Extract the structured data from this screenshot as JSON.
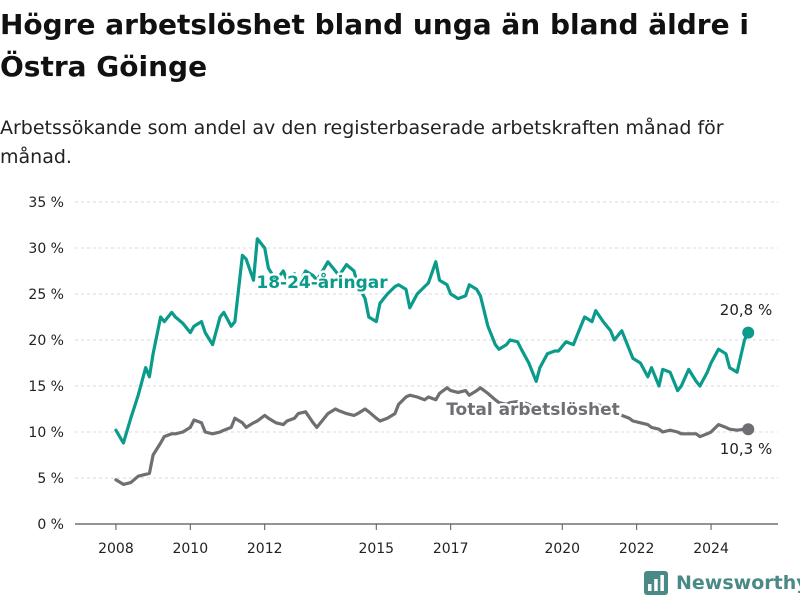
{
  "chart_data": {
    "type": "line",
    "title": "Högre arbetslöshet bland unga än bland äldre i Östra Göinge",
    "subtitle": "Arbetssökande som andel av den registerbaserade arbetskraften månad för månad.",
    "y_ticks": [
      "0 %",
      "5 %",
      "10 %",
      "15 %",
      "20 %",
      "25 %",
      "30 %",
      "35 %"
    ],
    "y_tick_values": [
      0,
      5,
      10,
      15,
      20,
      25,
      30,
      35
    ],
    "ylim": [
      0,
      35
    ],
    "x_ticks": [
      "2008",
      "2010",
      "2012",
      "2015",
      "2017",
      "2020",
      "2022",
      "2024"
    ],
    "x_tick_values": [
      2008,
      2010,
      2012,
      2015,
      2017,
      2020,
      2022,
      2024
    ],
    "xlim": [
      2006.9,
      2025.8
    ],
    "grid": "horizontal",
    "series": [
      {
        "name": "18-24-åringar",
        "color": "#0a9b8b",
        "end_label": "20,8 %",
        "x": [
          2008.0,
          2008.2,
          2008.4,
          2008.6,
          2008.8,
          2008.9,
          2009.0,
          2009.2,
          2009.3,
          2009.5,
          2009.6,
          2009.8,
          2010.0,
          2010.1,
          2010.3,
          2010.4,
          2010.6,
          2010.8,
          2010.9,
          2011.1,
          2011.2,
          2011.4,
          2011.5,
          2011.7,
          2011.8,
          2012.0,
          2012.1,
          2012.3,
          2012.5,
          2012.6,
          2012.8,
          2012.9,
          2013.1,
          2013.3,
          2013.4,
          2013.6,
          2013.7,
          2013.9,
          2014.0,
          2014.2,
          2014.4,
          2014.5,
          2014.7,
          2014.8,
          2015.0,
          2015.1,
          2015.3,
          2015.5,
          2015.6,
          2015.8,
          2015.9,
          2016.1,
          2016.3,
          2016.4,
          2016.6,
          2016.7,
          2016.9,
          2017.0,
          2017.2,
          2017.4,
          2017.5,
          2017.7,
          2017.8,
          2018.0,
          2018.2,
          2018.3,
          2018.5,
          2018.6,
          2018.8,
          2018.9,
          2019.1,
          2019.3,
          2019.4,
          2019.6,
          2019.8,
          2019.9,
          2020.1,
          2020.3,
          2020.4,
          2020.6,
          2020.8,
          2020.9,
          2021.1,
          2021.3,
          2021.4,
          2021.6,
          2021.8,
          2021.9,
          2022.1,
          2022.3,
          2022.4,
          2022.6,
          2022.7,
          2022.9,
          2023.1,
          2023.2,
          2023.4,
          2023.6,
          2023.7,
          2023.9,
          2024.0,
          2024.2,
          2024.4,
          2024.5,
          2024.7,
          2024.9,
          2025.0
        ],
        "y": [
          10.2,
          8.8,
          11.5,
          14.0,
          17.0,
          16.0,
          18.5,
          22.5,
          22.0,
          23.0,
          22.5,
          21.8,
          20.8,
          21.5,
          22.0,
          20.8,
          19.5,
          22.5,
          23.0,
          21.5,
          22.0,
          29.2,
          28.8,
          26.5,
          31.0,
          30.0,
          27.8,
          26.5,
          27.5,
          26.5,
          27.2,
          26.0,
          27.5,
          27.0,
          26.5,
          27.8,
          28.5,
          27.5,
          27.0,
          28.2,
          27.5,
          26.0,
          24.5,
          22.5,
          22.0,
          24.0,
          25.0,
          25.8,
          26.0,
          25.5,
          23.5,
          25.0,
          25.8,
          26.2,
          28.5,
          26.5,
          26.0,
          25.0,
          24.5,
          24.8,
          26.0,
          25.5,
          24.8,
          21.5,
          19.5,
          19.0,
          19.5,
          20.0,
          19.8,
          19.0,
          17.5,
          15.5,
          17.0,
          18.5,
          18.8,
          18.8,
          19.8,
          19.5,
          20.5,
          22.5,
          22.0,
          23.2,
          22.0,
          21.0,
          20.0,
          21.0,
          19.0,
          18.0,
          17.5,
          16.0,
          17.0,
          15.0,
          16.8,
          16.5,
          14.5,
          15.0,
          16.8,
          15.5,
          15.0,
          16.5,
          17.5,
          19.0,
          18.5,
          17.0,
          16.5,
          20.0,
          20.8
        ]
      },
      {
        "name": "Total arbetslöshet",
        "color": "#6e6e73",
        "end_label": "10,3 %",
        "x": [
          2008.0,
          2008.2,
          2008.4,
          2008.6,
          2008.8,
          2008.9,
          2009.0,
          2009.2,
          2009.3,
          2009.5,
          2009.6,
          2009.8,
          2010.0,
          2010.1,
          2010.3,
          2010.4,
          2010.6,
          2010.8,
          2010.9,
          2011.1,
          2011.2,
          2011.4,
          2011.5,
          2011.7,
          2011.8,
          2012.0,
          2012.1,
          2012.3,
          2012.5,
          2012.6,
          2012.8,
          2012.9,
          2013.1,
          2013.3,
          2013.4,
          2013.6,
          2013.7,
          2013.9,
          2014.0,
          2014.2,
          2014.4,
          2014.5,
          2014.7,
          2014.8,
          2015.0,
          2015.1,
          2015.3,
          2015.5,
          2015.6,
          2015.8,
          2015.9,
          2016.1,
          2016.3,
          2016.4,
          2016.6,
          2016.7,
          2016.9,
          2017.0,
          2017.2,
          2017.4,
          2017.5,
          2017.7,
          2017.8,
          2018.0,
          2018.2,
          2018.3,
          2018.5,
          2018.6,
          2018.8,
          2018.9,
          2019.1,
          2019.3,
          2019.4,
          2019.6,
          2019.8,
          2019.9,
          2020.1,
          2020.3,
          2020.4,
          2020.6,
          2020.8,
          2020.9,
          2021.1,
          2021.3,
          2021.4,
          2021.6,
          2021.8,
          2021.9,
          2022.1,
          2022.3,
          2022.4,
          2022.6,
          2022.7,
          2022.9,
          2023.1,
          2023.2,
          2023.4,
          2023.6,
          2023.7,
          2023.9,
          2024.0,
          2024.2,
          2024.4,
          2024.5,
          2024.7,
          2024.9,
          2025.0
        ],
        "y": [
          4.8,
          4.3,
          4.5,
          5.2,
          5.4,
          5.5,
          7.5,
          8.8,
          9.5,
          9.8,
          9.8,
          10.0,
          10.5,
          11.3,
          11.0,
          10.0,
          9.8,
          10.0,
          10.2,
          10.5,
          11.5,
          11.0,
          10.5,
          11.0,
          11.2,
          11.8,
          11.5,
          11.0,
          10.8,
          11.2,
          11.5,
          12.0,
          12.2,
          11.0,
          10.5,
          11.5,
          12.0,
          12.5,
          12.3,
          12.0,
          11.8,
          12.0,
          12.5,
          12.2,
          11.5,
          11.2,
          11.5,
          12.0,
          13.0,
          13.8,
          14.0,
          13.8,
          13.5,
          13.8,
          13.5,
          14.2,
          14.8,
          14.5,
          14.3,
          14.5,
          14.0,
          14.5,
          14.8,
          14.2,
          13.5,
          13.2,
          13.0,
          13.2,
          13.3,
          13.3,
          13.0,
          12.5,
          12.0,
          12.5,
          13.0,
          12.8,
          12.5,
          12.0,
          12.3,
          12.8,
          12.5,
          13.0,
          12.8,
          12.5,
          12.0,
          11.8,
          11.5,
          11.2,
          11.0,
          10.8,
          10.5,
          10.3,
          10.0,
          10.2,
          10.0,
          9.8,
          9.8,
          9.8,
          9.5,
          9.8,
          10.0,
          10.8,
          10.5,
          10.3,
          10.2,
          10.3,
          10.3
        ]
      }
    ]
  },
  "brand": {
    "name": "Newsworthy",
    "color": "#4a8a86"
  }
}
